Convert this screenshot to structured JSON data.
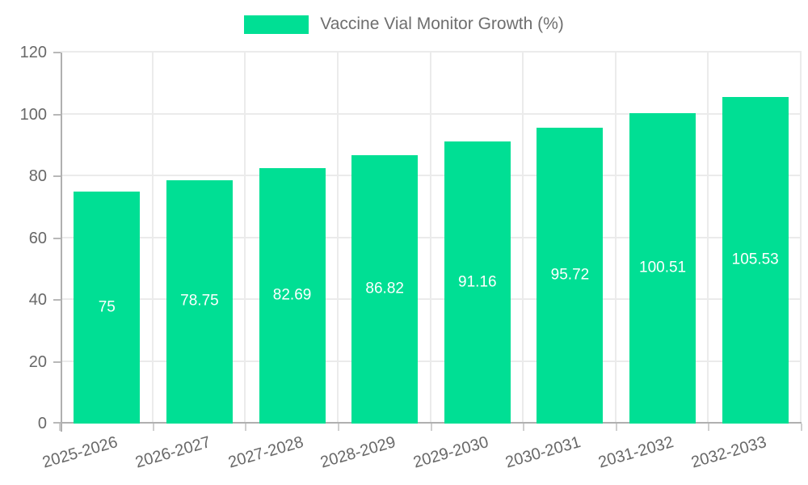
{
  "legend": {
    "label": "Vaccine Vial Monitor Growth (%)",
    "swatch_color": "#00DF94"
  },
  "chart_data": {
    "type": "bar",
    "title": "Vaccine Vial Monitor Growth (%)",
    "categories": [
      "2025-2026",
      "2026-2027",
      "2027-2028",
      "2028-2029",
      "2029-2030",
      "2030-2031",
      "2031-2032",
      "2032-2033"
    ],
    "values": [
      75,
      78.75,
      82.69,
      86.82,
      91.16,
      95.72,
      100.51,
      105.53
    ],
    "value_labels": [
      "75",
      "78.75",
      "82.69",
      "86.82",
      "91.16",
      "95.72",
      "100.51",
      "105.53"
    ],
    "xlabel": "",
    "ylabel": "",
    "ylim": [
      0,
      120
    ],
    "yticks": [
      "0",
      "20",
      "40",
      "60",
      "80",
      "100",
      "120"
    ],
    "grid": "on",
    "legend_position": "top-center",
    "bar_color": "#00DF94",
    "value_label_color": "#ffffff",
    "axis_color": "#b0b0b0",
    "grid_color": "#ebebeb",
    "tick_label_color": "#686868"
  }
}
